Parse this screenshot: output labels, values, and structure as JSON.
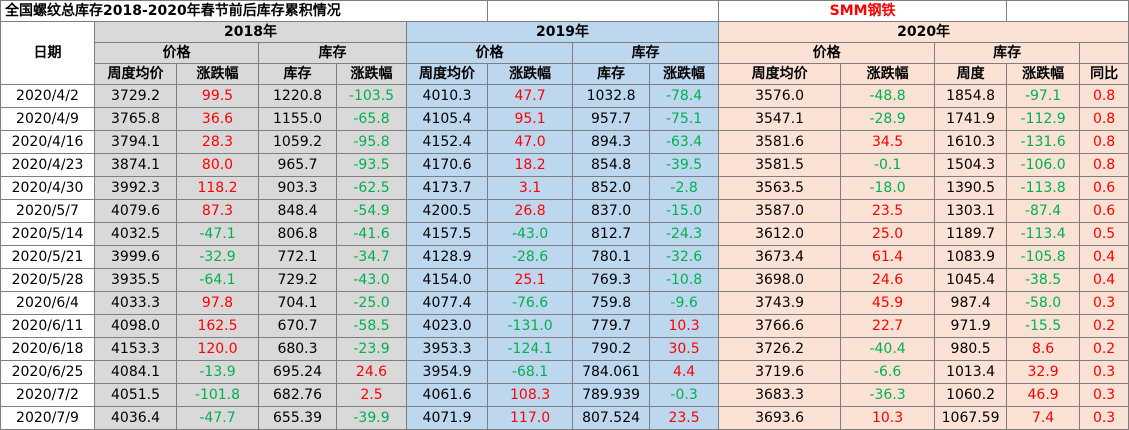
{
  "title": "全国螺纹总库存2018-2020年春节前后库存累积情况",
  "brand": "SMM钢铁",
  "header": {
    "date_label": "日期",
    "y2018": "2018年",
    "y2019": "2019年",
    "y2020": "2020年",
    "price": "价格",
    "stock": "库存",
    "weekly_avg_price": "周度均价",
    "change": "涨跌幅",
    "inventory": "库存",
    "weekly": "周度",
    "yoy": "同比"
  },
  "colors": {
    "up": "#ff0000",
    "down": "#00b050",
    "bg2018": "#d9d9d9",
    "bg2019": "#bdd7ee",
    "bg2020": "#fbe2d5"
  },
  "rows": [
    [
      "2020/4/2",
      "3729.2",
      "99.5",
      "1220.8",
      "-103.5",
      "4010.3",
      "47.7",
      "1032.8",
      "-78.4",
      "3576.0",
      "-48.8",
      "1854.8",
      "-97.1",
      "0.8"
    ],
    [
      "2020/4/9",
      "3765.8",
      "36.6",
      "1155.0",
      "-65.8",
      "4105.4",
      "95.1",
      "957.7",
      "-75.1",
      "3547.1",
      "-28.9",
      "1741.9",
      "-112.9",
      "0.8"
    ],
    [
      "2020/4/16",
      "3794.1",
      "28.3",
      "1059.2",
      "-95.8",
      "4152.4",
      "47.0",
      "894.3",
      "-63.4",
      "3581.6",
      "34.5",
      "1610.3",
      "-131.6",
      "0.8"
    ],
    [
      "2020/4/23",
      "3874.1",
      "80.0",
      "965.7",
      "-93.5",
      "4170.6",
      "18.2",
      "854.8",
      "-39.5",
      "3581.5",
      "-0.1",
      "1504.3",
      "-106.0",
      "0.8"
    ],
    [
      "2020/4/30",
      "3992.3",
      "118.2",
      "903.3",
      "-62.5",
      "4173.7",
      "3.1",
      "852.0",
      "-2.8",
      "3563.5",
      "-18.0",
      "1390.5",
      "-113.8",
      "0.6"
    ],
    [
      "2020/5/7",
      "4079.6",
      "87.3",
      "848.4",
      "-54.9",
      "4200.5",
      "26.8",
      "837.0",
      "-15.0",
      "3587.0",
      "23.5",
      "1303.1",
      "-87.4",
      "0.6"
    ],
    [
      "2020/5/14",
      "4032.5",
      "-47.1",
      "806.8",
      "-41.6",
      "4157.5",
      "-43.0",
      "812.7",
      "-24.3",
      "3612.0",
      "25.0",
      "1189.7",
      "-113.4",
      "0.5"
    ],
    [
      "2020/5/21",
      "3999.6",
      "-32.9",
      "772.1",
      "-34.7",
      "4128.9",
      "-28.6",
      "780.1",
      "-32.6",
      "3673.4",
      "61.4",
      "1083.9",
      "-105.8",
      "0.4"
    ],
    [
      "2020/5/28",
      "3935.5",
      "-64.1",
      "729.2",
      "-43.0",
      "4154.0",
      "25.1",
      "769.3",
      "-10.8",
      "3698.0",
      "24.6",
      "1045.4",
      "-38.5",
      "0.4"
    ],
    [
      "2020/6/4",
      "4033.3",
      "97.8",
      "704.1",
      "-25.0",
      "4077.4",
      "-76.6",
      "759.8",
      "-9.6",
      "3743.9",
      "45.9",
      "987.4",
      "-58.0",
      "0.3"
    ],
    [
      "2020/6/11",
      "4098.0",
      "162.5",
      "670.7",
      "-58.5",
      "4023.0",
      "-131.0",
      "779.7",
      "10.3",
      "3766.6",
      "22.7",
      "971.9",
      "-15.5",
      "0.2"
    ],
    [
      "2020/6/18",
      "4153.3",
      "120.0",
      "680.3",
      "-23.9",
      "3953.3",
      "-124.1",
      "790.2",
      "30.5",
      "3726.2",
      "-40.4",
      "980.5",
      "8.6",
      "0.2"
    ],
    [
      "2020/6/25",
      "4084.1",
      "-13.9",
      "695.24",
      "24.6",
      "3954.9",
      "-68.1",
      "784.061",
      "4.4",
      "3719.6",
      "-6.6",
      "1013.4",
      "32.9",
      "0.3"
    ],
    [
      "2020/7/2",
      "4051.5",
      "-101.8",
      "682.76",
      "2.5",
      "4061.6",
      "108.3",
      "789.939",
      "-0.3",
      "3683.3",
      "-36.3",
      "1060.2",
      "46.9",
      "0.3"
    ],
    [
      "2020/7/9",
      "4036.4",
      "-47.7",
      "655.39",
      "-39.9",
      "4071.9",
      "117.0",
      "807.524",
      "23.5",
      "3693.6",
      "10.3",
      "1067.59",
      "7.4",
      "0.3"
    ]
  ]
}
